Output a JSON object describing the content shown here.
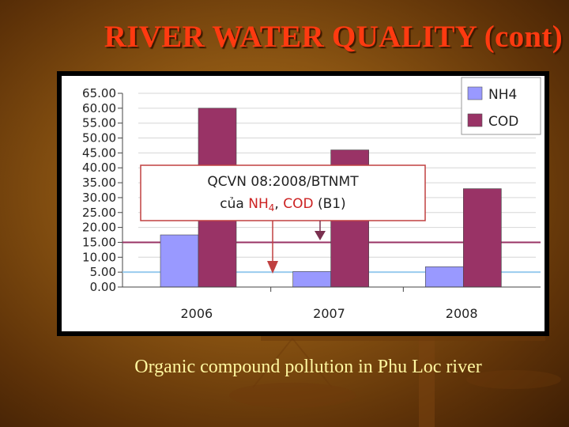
{
  "slide": {
    "title": "RIVER WATER QUALITY (cont)",
    "caption": "Organic compound pollution in Phu Loc river"
  },
  "chart_data": {
    "type": "bar",
    "categories": [
      "2006",
      "2007",
      "2008"
    ],
    "series": [
      {
        "name": "NH4",
        "color": "#9999ff",
        "values": [
          17.5,
          5.2,
          6.8
        ]
      },
      {
        "name": "COD",
        "color": "#993366",
        "values": [
          60.0,
          46.0,
          33.0
        ]
      }
    ],
    "yticks": [
      "0.00",
      "5.00",
      "10.00",
      "15.00",
      "20.00",
      "25.00",
      "30.00",
      "35.00",
      "40.00",
      "45.00",
      "50.00",
      "55.00",
      "60.00",
      "65.00"
    ],
    "ylim": [
      0,
      65
    ],
    "grid": true,
    "legend": "top-right",
    "reference_lines": [
      {
        "name": "NH4",
        "value": 5,
        "color": "#99ccee"
      },
      {
        "name": "COD",
        "value": 15,
        "color": "#993366"
      }
    ],
    "annotation": {
      "line1": "QCVN 08:2008/BTNMT",
      "line2_prefix": "của ",
      "nh4_label": "NH",
      "nh4_sub": "4",
      "sep": ", ",
      "cod_label": "COD",
      "suffix": " (B1)"
    }
  }
}
